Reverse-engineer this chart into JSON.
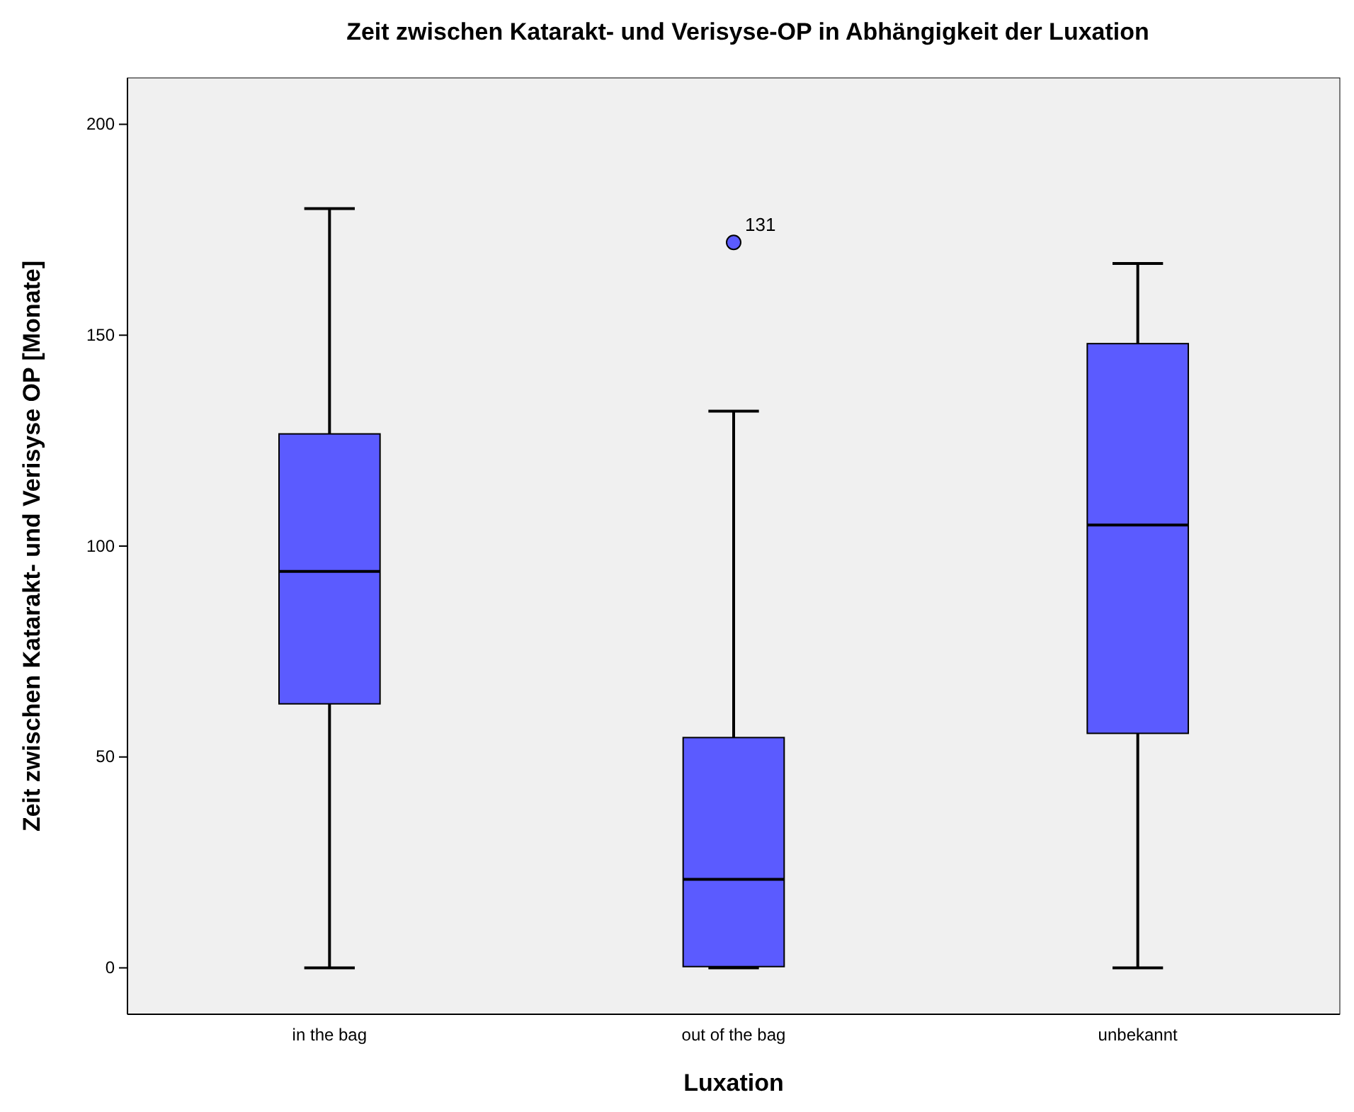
{
  "chart_data": {
    "type": "box",
    "title": "Zeit zwischen Katarakt- und Verisyse-OP in Abhängigkeit der Luxation",
    "xlabel": "Luxation",
    "ylabel": "Zeit zwischen Katarakt- und Verisyse OP [Monate]",
    "categories": [
      "in the bag",
      "out of the bag",
      "unbekannt"
    ],
    "color": "#5b5bff",
    "boxes": [
      {
        "low": 0,
        "q1": 62.6,
        "median": 94,
        "q3": 126.6,
        "high": 180
      },
      {
        "low": 0,
        "q1": 0.3,
        "median": 21,
        "q3": 54.6,
        "high": 132,
        "outliers": [
          172
        ]
      },
      {
        "low": 0,
        "q1": 55.6,
        "median": 105,
        "q3": 148,
        "high": 167
      }
    ],
    "ylim": [
      -11,
      211
    ],
    "yticks": [
      0,
      50,
      100,
      150,
      200
    ],
    "annotations": [
      "131"
    ]
  }
}
